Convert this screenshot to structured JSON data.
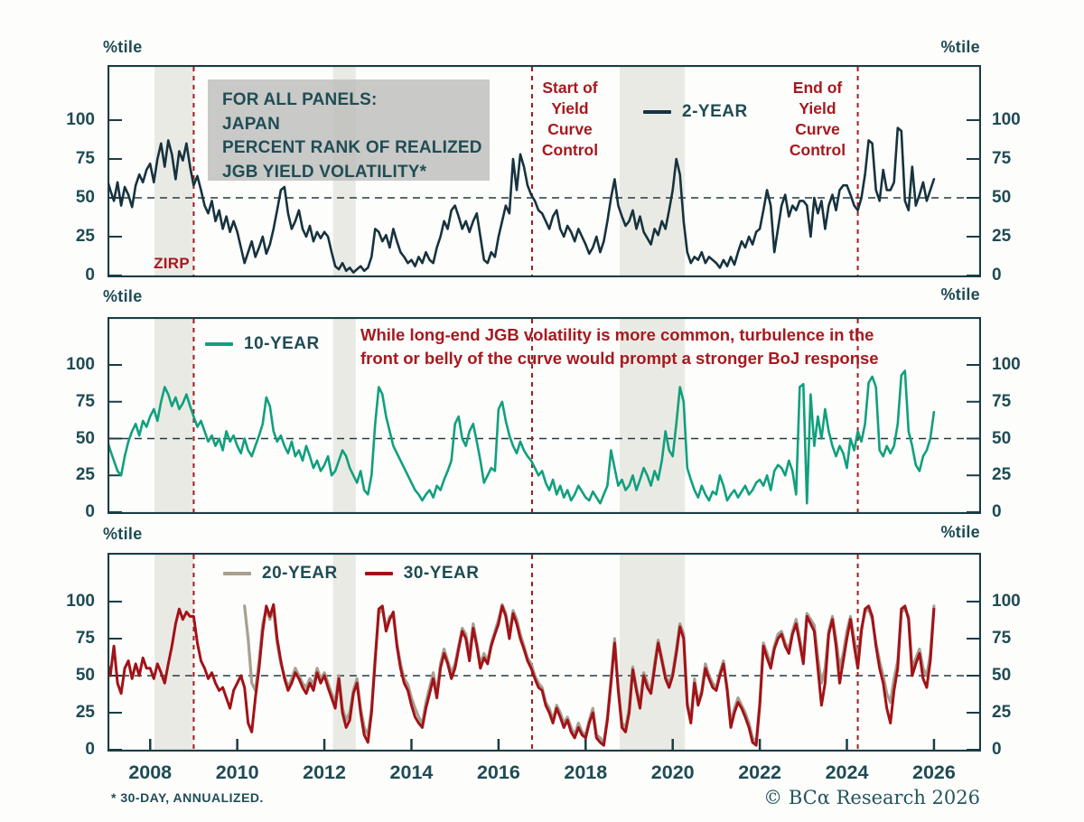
{
  "percent_label": "%tile",
  "info_box": {
    "lines": [
      "FOR ALL PANELS:",
      "JAPAN",
      "PERCENT RANK OF REALIZED",
      "JGB YIELD VOLATILITY*"
    ]
  },
  "annotations": {
    "zirp": {
      "label": "ZIRP"
    },
    "ycc_start": {
      "lines": [
        "Start of",
        "Yield",
        "Curve",
        "Control"
      ]
    },
    "ycc_end": {
      "lines": [
        "End of",
        "Yield",
        "Curve",
        "Control"
      ]
    },
    "note": {
      "lines": [
        "While long-end JGB volatility is more common, turbulence in the",
        "front or belly of the curve would prompt a stronger BoJ response"
      ]
    }
  },
  "footnote": "* 30-DAY, ANNUALIZED.",
  "copyright": "© BCα Research 2026",
  "chart_data": {
    "type": "line",
    "x": {
      "range": [
        2007.02,
        2027.08
      ],
      "ticks": [
        2008,
        2010,
        2012,
        2014,
        2016,
        2018,
        2020,
        2022,
        2024,
        2026
      ],
      "tick_labels": [
        "2008",
        "2010",
        "2012",
        "2014",
        "2016",
        "2018",
        "2020",
        "2022",
        "2024",
        "2026"
      ]
    },
    "events": [
      {
        "name": "zirp",
        "year": 2009.0
      },
      {
        "name": "ycc_start",
        "year": 2016.77
      },
      {
        "name": "ycc_end",
        "year": 2024.25
      }
    ],
    "shaded_bands": [
      [
        2008.1,
        2009.0
      ],
      [
        2012.2,
        2012.72
      ],
      [
        2018.78,
        2020.28
      ]
    ],
    "band_color": "#eaeae5",
    "event_line_color": "#a6191e",
    "axis_color": "#1b3c44",
    "ref_line_value": 50,
    "y_unit": "%tile",
    "yticks": [
      100,
      75,
      50,
      25,
      0
    ],
    "ylim": [
      0,
      135
    ],
    "panels": [
      {
        "name": "2-year",
        "series": [
          {
            "name": "2-YEAR",
            "color": "#16333e",
            "width": 2.6,
            "start": 2007.0,
            "step": 0.083333,
            "values": [
              63,
              55,
              48,
              60,
              45,
              57,
              52,
              44,
              58,
              65,
              60,
              68,
              72,
              60,
              75,
              85,
              70,
              87,
              78,
              62,
              80,
              74,
              85,
              70,
              58,
              64,
              55,
              45,
              40,
              48,
              35,
              42,
              30,
              38,
              28,
              35,
              28,
              18,
              8,
              15,
              22,
              12,
              18,
              25,
              14,
              20,
              30,
              42,
              55,
              57,
              40,
              30,
              35,
              42,
              30,
              25,
              32,
              22,
              28,
              24,
              28,
              25,
              15,
              6,
              4,
              8,
              3,
              5,
              2,
              4,
              6,
              3,
              5,
              12,
              30,
              28,
              22,
              26,
              18,
              30,
              22,
              15,
              12,
              8,
              10,
              6,
              12,
              8,
              15,
              10,
              8,
              18,
              25,
              35,
              30,
              42,
              45,
              38,
              30,
              35,
              28,
              35,
              40,
              25,
              10,
              8,
              15,
              12,
              25,
              35,
              45,
              40,
              75,
              55,
              78,
              70,
              58,
              52,
              48,
              42,
              40,
              35,
              30,
              38,
              42,
              30,
              25,
              32,
              28,
              22,
              30,
              25,
              20,
              14,
              18,
              25,
              15,
              22,
              35,
              50,
              62,
              45,
              38,
              32,
              35,
              42,
              30,
              38,
              28,
              24,
              20,
              30,
              26,
              35,
              30,
              42,
              55,
              75,
              65,
              35,
              15,
              8,
              12,
              10,
              15,
              8,
              12,
              10,
              8,
              5,
              10,
              6,
              12,
              7,
              15,
              22,
              18,
              25,
              20,
              28,
              30,
              42,
              55,
              45,
              15,
              30,
              45,
              52,
              38,
              45,
              42,
              48,
              48,
              45,
              25,
              50,
              40,
              48,
              30,
              45,
              52,
              42,
              55,
              58,
              58,
              52,
              45,
              42,
              50,
              65,
              87,
              85,
              55,
              48,
              68,
              55,
              55,
              60,
              95,
              93,
              48,
              42,
              70,
              45,
              52,
              60,
              48,
              55,
              62
            ]
          }
        ]
      },
      {
        "name": "10-year",
        "series": [
          {
            "name": "10-YEAR",
            "color": "#10a07d",
            "width": 2.6,
            "start": 2007.0,
            "step": 0.083333,
            "values": [
              50,
              42,
              35,
              28,
              25,
              38,
              48,
              55,
              60,
              52,
              62,
              58,
              65,
              70,
              62,
              75,
              85,
              80,
              72,
              78,
              70,
              74,
              80,
              72,
              65,
              58,
              62,
              55,
              48,
              52,
              45,
              50,
              42,
              55,
              48,
              52,
              45,
              40,
              50,
              42,
              38,
              45,
              52,
              60,
              78,
              72,
              55,
              48,
              52,
              45,
              40,
              48,
              38,
              42,
              35,
              45,
              38,
              30,
              35,
              28,
              32,
              38,
              25,
              28,
              35,
              42,
              38,
              30,
              25,
              20,
              28,
              15,
              12,
              25,
              60,
              85,
              80,
              65,
              55,
              45,
              40,
              35,
              30,
              25,
              20,
              15,
              12,
              8,
              12,
              15,
              10,
              18,
              15,
              22,
              28,
              35,
              60,
              65,
              50,
              45,
              55,
              60,
              48,
              35,
              20,
              25,
              30,
              28,
              70,
              75,
              62,
              52,
              45,
              40,
              48,
              42,
              38,
              35,
              30,
              25,
              28,
              20,
              15,
              22,
              12,
              18,
              10,
              15,
              8,
              12,
              18,
              14,
              10,
              8,
              14,
              10,
              6,
              12,
              18,
              42,
              30,
              18,
              22,
              15,
              18,
              25,
              15,
              22,
              30,
              25,
              18,
              28,
              22,
              35,
              55,
              42,
              38,
              60,
              85,
              75,
              30,
              22,
              15,
              10,
              18,
              12,
              8,
              14,
              12,
              25,
              18,
              8,
              12,
              15,
              10,
              14,
              18,
              12,
              15,
              20,
              22,
              18,
              25,
              15,
              28,
              32,
              30,
              25,
              35,
              28,
              12,
              85,
              87,
              6,
              80,
              45,
              65,
              50,
              70,
              55,
              45,
              38,
              45,
              40,
              30,
              50,
              42,
              55,
              48,
              60,
              88,
              92,
              85,
              42,
              38,
              45,
              40,
              45,
              60,
              93,
              96,
              55,
              45,
              32,
              28,
              38,
              42,
              50,
              68
            ]
          }
        ]
      },
      {
        "name": "20-and-30-year",
        "series": [
          {
            "name": "20-YEAR",
            "color": "#a89f90",
            "width": 3.2,
            "start": 2010.1667,
            "step": 0.083333,
            "values": [
              97,
              75,
              45,
              40,
              60,
              85,
              95,
              88,
              95,
              72,
              58,
              50,
              42,
              48,
              55,
              50,
              45,
              42,
              48,
              44,
              55,
              48,
              52,
              45,
              38,
              32,
              50,
              28,
              20,
              25,
              40,
              48,
              28,
              15,
              10,
              28,
              62,
              92,
              95,
              82,
              90,
              90,
              72,
              58,
              48,
              44,
              35,
              28,
              22,
              18,
              32,
              42,
              52,
              38,
              58,
              68,
              60,
              52,
              58,
              70,
              82,
              78,
              64,
              85,
              72,
              58,
              65,
              60,
              72,
              80,
              88,
              98,
              92,
              78,
              94,
              88,
              78,
              70,
              62,
              58,
              50,
              45,
              42,
              32,
              28,
              20,
              30,
              25,
              18,
              22,
              15,
              10,
              18,
              12,
              10,
              20,
              28,
              10,
              8,
              5,
              22,
              48,
              75,
              42,
              18,
              15,
              28,
              56,
              42,
              30,
              52,
              45,
              40,
              58,
              74,
              62,
              50,
              45,
              52,
              68,
              85,
              78,
              32,
              20,
              48,
              32,
              40,
              58,
              50,
              45,
              42,
              52,
              60,
              42,
              18,
              28,
              35,
              30,
              25,
              18,
              8,
              5,
              32,
              72,
              65,
              58,
              70,
              78,
              80,
              72,
              68,
              80,
              88,
              75,
              62,
              92,
              88,
              84,
              62,
              45,
              55,
              80,
              90,
              75,
              55,
              65,
              80,
              90,
              75,
              60,
              82,
              93,
              95,
              88,
              72,
              60,
              50,
              38,
              32,
              48,
              60,
              93,
              95,
              90,
              55,
              62,
              68,
              55,
              50,
              65,
              97
            ]
          },
          {
            "name": "30-YEAR",
            "color": "#a21217",
            "width": 3,
            "start": 2007.0,
            "step": 0.083333,
            "values": [
              62,
              50,
              70,
              45,
              38,
              55,
              60,
              48,
              58,
              50,
              62,
              55,
              55,
              48,
              58,
              52,
              45,
              58,
              70,
              85,
              95,
              88,
              93,
              90,
              90,
              72,
              60,
              55,
              48,
              52,
              45,
              40,
              42,
              35,
              28,
              40,
              45,
              50,
              42,
              18,
              12,
              35,
              55,
              80,
              97,
              90,
              98,
              75,
              60,
              48,
              40,
              45,
              52,
              48,
              42,
              38,
              45,
              40,
              52,
              45,
              50,
              42,
              35,
              28,
              48,
              25,
              15,
              20,
              38,
              45,
              25,
              10,
              5,
              25,
              60,
              95,
              97,
              80,
              88,
              93,
              70,
              55,
              45,
              40,
              30,
              22,
              18,
              15,
              28,
              38,
              48,
              35,
              55,
              65,
              58,
              48,
              55,
              68,
              80,
              75,
              60,
              82,
              70,
              55,
              62,
              58,
              70,
              78,
              85,
              97,
              90,
              75,
              92,
              85,
              75,
              68,
              60,
              55,
              48,
              42,
              40,
              30,
              25,
              18,
              28,
              22,
              15,
              20,
              12,
              8,
              15,
              10,
              8,
              18,
              25,
              8,
              5,
              3,
              20,
              45,
              72,
              40,
              15,
              12,
              25,
              54,
              40,
              28,
              50,
              42,
              38,
              55,
              72,
              60,
              48,
              42,
              50,
              65,
              83,
              75,
              30,
              18,
              45,
              30,
              38,
              55,
              48,
              42,
              40,
              50,
              58,
              40,
              15,
              25,
              32,
              28,
              22,
              15,
              5,
              3,
              30,
              70,
              62,
              55,
              68,
              75,
              78,
              70,
              65,
              78,
              85,
              72,
              58,
              90,
              85,
              80,
              55,
              30,
              45,
              78,
              88,
              70,
              45,
              60,
              75,
              88,
              70,
              55,
              80,
              95,
              97,
              90,
              70,
              55,
              45,
              28,
              18,
              40,
              55,
              95,
              97,
              88,
              50,
              58,
              65,
              48,
              42,
              60,
              95
            ]
          }
        ]
      }
    ]
  }
}
